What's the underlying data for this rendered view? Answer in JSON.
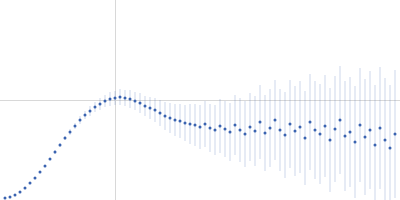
{
  "chart_data": {
    "type": "scatter",
    "x": [
      5,
      10,
      15,
      20,
      25,
      30,
      35,
      40,
      45,
      50,
      55,
      60,
      65,
      70,
      75,
      80,
      85,
      90,
      95,
      100,
      105,
      110,
      115,
      120,
      125,
      130,
      135,
      140,
      145,
      150,
      155,
      160,
      165,
      170,
      175,
      180,
      185,
      190,
      195,
      200,
      205,
      210,
      215,
      220,
      225,
      230,
      235,
      240,
      245,
      250,
      255,
      260,
      265,
      270,
      275,
      280,
      285,
      290,
      295,
      300,
      305,
      310,
      315,
      320,
      325,
      330,
      335,
      340,
      345,
      350,
      355,
      360,
      365,
      370,
      375,
      380,
      385,
      390,
      395
    ],
    "values": [
      2,
      3,
      5,
      8,
      12,
      17,
      22,
      28,
      34,
      41,
      48,
      55,
      62,
      68,
      74,
      80,
      85,
      89,
      93,
      96,
      99,
      101,
      102,
      103,
      102,
      101,
      99,
      97,
      94,
      92,
      90,
      87,
      84,
      82,
      80,
      79,
      77,
      76,
      75,
      73,
      76,
      72,
      70,
      74,
      71,
      68,
      75,
      70,
      66,
      73,
      69,
      78,
      67,
      72,
      80,
      70,
      65,
      76,
      69,
      73,
      62,
      78,
      70,
      66,
      74,
      60,
      71,
      80,
      64,
      68,
      58,
      75,
      63,
      70,
      55,
      72,
      60,
      52,
      66
    ],
    "error": [
      1,
      1,
      1,
      1,
      1,
      1,
      1,
      1,
      1,
      1,
      2,
      2,
      2,
      3,
      3,
      4,
      4,
      5,
      5,
      6,
      6,
      7,
      7,
      8,
      8,
      9,
      9,
      10,
      10,
      11,
      12,
      13,
      14,
      15,
      16,
      17,
      18,
      20,
      21,
      22,
      23,
      24,
      25,
      27,
      28,
      29,
      30,
      32,
      33,
      34,
      35,
      37,
      38,
      39,
      40,
      41,
      43,
      44,
      45,
      46,
      47,
      48,
      49,
      50,
      51,
      52,
      53,
      54,
      55,
      55,
      56,
      57,
      58,
      59,
      60,
      61,
      62,
      63,
      64
    ],
    "color": "#3a63b0",
    "marker": "circle",
    "xlim": [
      0,
      400
    ],
    "ylim": [
      0,
      200
    ],
    "xticks": [
      115
    ],
    "yticks": [
      100
    ],
    "grid": true,
    "tick_labels": false
  }
}
